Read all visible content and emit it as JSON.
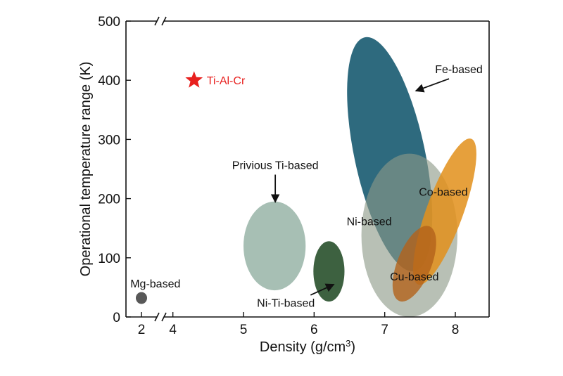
{
  "chart_data": {
    "type": "scatter",
    "title": "",
    "xlabel": "Density (g/cm³)",
    "ylabel": "Operational temperature range (K)",
    "x_break": [
      2.3,
      3.8
    ],
    "xlim": [
      1.7,
      8.5
    ],
    "ylim": [
      0,
      500
    ],
    "xticks": [
      {
        "value": 2,
        "label": "2"
      },
      {
        "value": 4,
        "label": "4"
      },
      {
        "value": 5,
        "label": "5"
      },
      {
        "value": 6,
        "label": "6"
      },
      {
        "value": 7,
        "label": "7"
      },
      {
        "value": 8,
        "label": "8"
      }
    ],
    "yticks": [
      {
        "value": 0,
        "label": "0"
      },
      {
        "value": 100,
        "label": "100"
      },
      {
        "value": 200,
        "label": "200"
      },
      {
        "value": 300,
        "label": "300"
      },
      {
        "value": 400,
        "label": "400"
      },
      {
        "value": 500,
        "label": "500"
      }
    ],
    "marker": {
      "name": "Ti-Al-Cr",
      "x": 4.3,
      "y": 400,
      "shape": "star",
      "color": "#e8201e"
    },
    "regions": [
      {
        "id": "fe",
        "name": "Fe-based",
        "cx": 7.07,
        "cy": 275,
        "rx_density": 0.5,
        "ry_temp": 202,
        "rotation_deg": -12,
        "color": "#1e5f74",
        "opacity": 0.93
      },
      {
        "id": "ni",
        "name": "Ni-based",
        "cx": 7.35,
        "cy": 138,
        "rx_density": 0.68,
        "ry_temp": 138,
        "rotation_deg": 0,
        "color": "#8d9a88",
        "opacity": 0.62
      },
      {
        "id": "co",
        "name": "Co-based",
        "cx": 7.85,
        "cy": 178,
        "rx_density": 0.26,
        "ry_temp": 131,
        "rotation_deg": 20,
        "color": "#e2901c",
        "opacity": 0.86
      },
      {
        "id": "cu",
        "name": "Cu-based",
        "cx": 7.42,
        "cy": 90,
        "rx_density": 0.24,
        "ry_temp": 68,
        "rotation_deg": 22,
        "color": "#b3621a",
        "opacity": 0.8
      },
      {
        "id": "ti",
        "name": "Privious Ti-based",
        "cx": 5.44,
        "cy": 120,
        "rx_density": 0.44,
        "ry_temp": 75,
        "rotation_deg": 0,
        "color": "#a7bfb4",
        "opacity": 1
      },
      {
        "id": "niti",
        "name": "Ni-Ti-based",
        "cx": 6.21,
        "cy": 77,
        "rx_density": 0.22,
        "ry_temp": 51,
        "rotation_deg": 0,
        "color": "#3d6140",
        "opacity": 1
      },
      {
        "id": "mg",
        "name": "Mg-based",
        "cx": 2.0,
        "cy": 32,
        "rx_density": 0.08,
        "ry_temp": 10,
        "rotation_deg": 0,
        "color": "#585858",
        "opacity": 1
      }
    ],
    "annotations": [
      {
        "text": "Fe-based",
        "x": 8.05,
        "y": 412,
        "anchor": "middle",
        "arrow_to": [
          7.44,
          382
        ]
      },
      {
        "text": "Privious Ti-based",
        "x": 5.45,
        "y": 250,
        "anchor": "middle",
        "arrow_to": [
          5.45,
          194
        ]
      },
      {
        "text": "Co-based",
        "x": 7.83,
        "y": 205,
        "anchor": "middle"
      },
      {
        "text": "Ni-based",
        "x": 6.78,
        "y": 155,
        "anchor": "middle"
      },
      {
        "text": "Cu-based",
        "x": 7.42,
        "y": 62,
        "anchor": "middle"
      },
      {
        "text": "Ni-Ti-based",
        "x": 5.6,
        "y": 17,
        "anchor": "middle",
        "arrow_from": [
          5.95,
          37
        ],
        "arrow_to": [
          6.28,
          55
        ]
      },
      {
        "text": "Mg-based",
        "x": 2.27,
        "y": 50,
        "anchor": "middle"
      }
    ]
  }
}
